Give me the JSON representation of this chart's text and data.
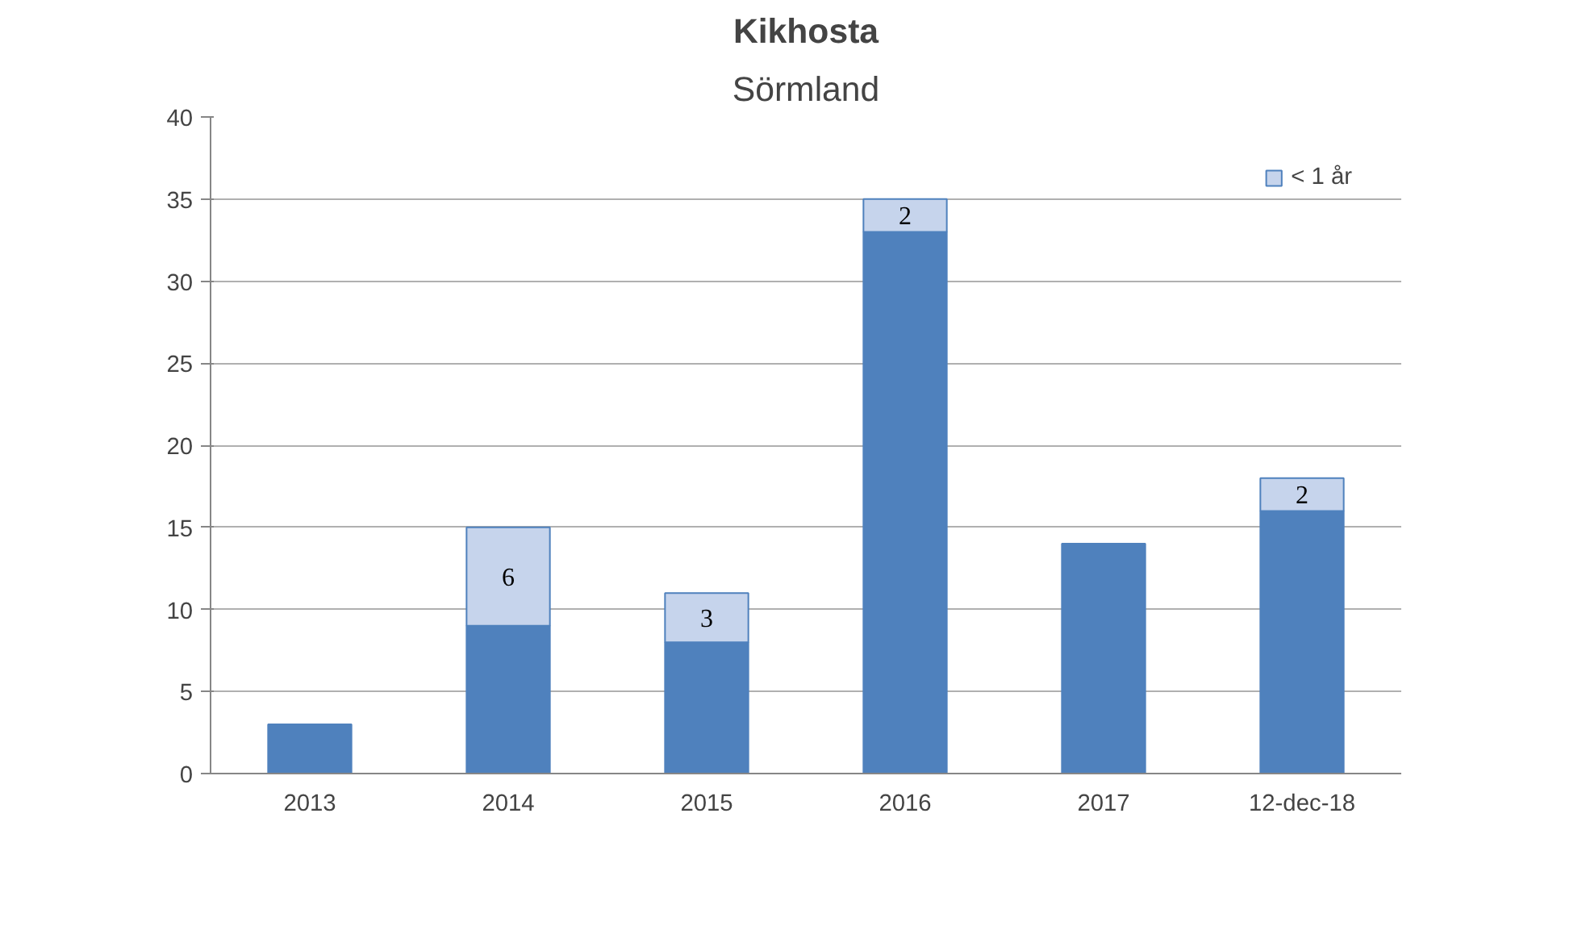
{
  "chart_data": {
    "type": "bar",
    "title": "Kikhosta",
    "subtitle": "Sörmland",
    "categories": [
      "2013",
      "2014",
      "2015",
      "2016",
      "2017",
      "12-dec-18"
    ],
    "stacked": true,
    "series": [
      {
        "color": "#4f81bd",
        "values": [
          3,
          9,
          8,
          33,
          14,
          16
        ]
      },
      {
        "name": "< 1 år",
        "color": "#c6d4ec",
        "values": [
          null,
          6,
          3,
          2,
          null,
          2
        ],
        "value_labels": [
          null,
          "6",
          "3",
          "2",
          null,
          "2"
        ]
      }
    ],
    "ylim": [
      0,
      40
    ],
    "yticks": [
      0,
      5,
      10,
      15,
      20,
      25,
      30,
      35,
      40
    ],
    "grid": "y",
    "legend": "top right"
  }
}
